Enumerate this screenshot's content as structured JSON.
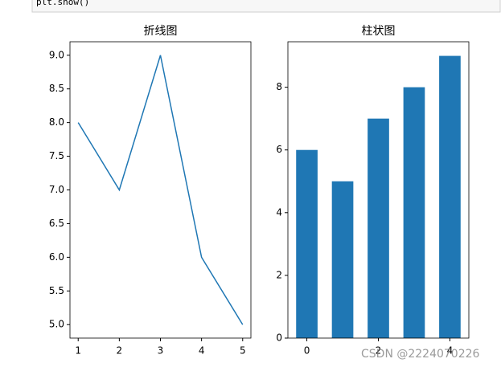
{
  "code": "plt.show()",
  "watermark": "CSDN @2224070226",
  "chart_data": [
    {
      "type": "line",
      "title": "折线图",
      "x": [
        1,
        2,
        3,
        4,
        5
      ],
      "values": [
        8,
        7,
        9,
        6,
        5
      ],
      "color": "#1f77b4",
      "xlim": [
        0.8,
        5.2
      ],
      "xticks": [
        1,
        2,
        3,
        4,
        5
      ],
      "ylim": [
        4.8,
        9.2
      ],
      "yticks": [
        {
          "value": 5,
          "label": "5.0"
        },
        {
          "value": 5.5,
          "label": "5.5"
        },
        {
          "value": 6,
          "label": "6.0"
        },
        {
          "value": 6.5,
          "label": "6.5"
        },
        {
          "value": 7,
          "label": "7.0"
        },
        {
          "value": 7.5,
          "label": "7.5"
        },
        {
          "value": 8,
          "label": "8.0"
        },
        {
          "value": 8.5,
          "label": "8.5"
        },
        {
          "value": 9,
          "label": "9.0"
        }
      ]
    },
    {
      "type": "bar",
      "title": "柱状图",
      "x": [
        0,
        1,
        2,
        3,
        4
      ],
      "values": [
        6,
        5,
        7,
        8,
        9
      ],
      "color": "#1f77b4",
      "bar_width": 0.6,
      "xlim": [
        -0.53,
        4.53
      ],
      "xticks": [
        0,
        2,
        4
      ],
      "ylim": [
        0,
        9.45
      ],
      "yticks": [
        0,
        2,
        4,
        6,
        8
      ]
    }
  ]
}
